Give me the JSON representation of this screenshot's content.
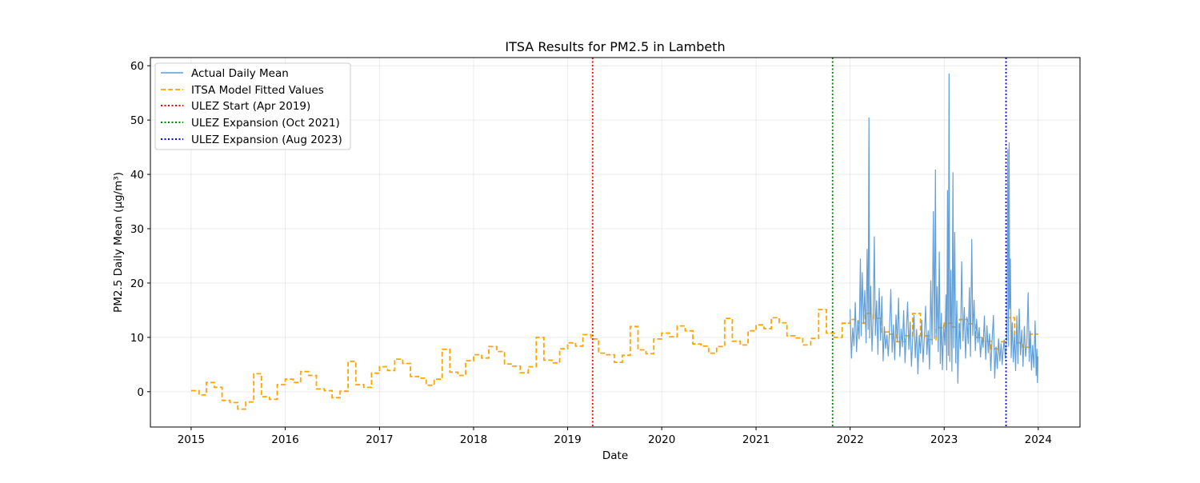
{
  "chart_data": {
    "type": "line",
    "title": "ITSA Results for PM2.5 in Lambeth",
    "xlabel": "Date",
    "ylabel": "PM2.5 Daily Mean (µg/m³)",
    "xlim": [
      "2014-07-27",
      "2024-06-11"
    ],
    "ylim": [
      -6.5,
      61.5
    ],
    "x_ticks": [
      "2015",
      "2016",
      "2017",
      "2018",
      "2019",
      "2020",
      "2021",
      "2022",
      "2023",
      "2024"
    ],
    "y_ticks": [
      0,
      10,
      20,
      30,
      40,
      50,
      60
    ],
    "grid": true,
    "legend_position": "upper-left",
    "series": [
      {
        "name": "Actual Daily Mean",
        "style": "solid",
        "color": "#5b9bd5",
        "points": [
          [
            "2022-01-01",
            15.2
          ],
          [
            "2022-01-06",
            6.1
          ],
          [
            "2022-01-11",
            11.8
          ],
          [
            "2022-01-16",
            8.4
          ],
          [
            "2022-01-21",
            16.5
          ],
          [
            "2022-01-26",
            7.3
          ],
          [
            "2022-01-31",
            13.1
          ],
          [
            "2022-02-05",
            9.6
          ],
          [
            "2022-02-10",
            24.5
          ],
          [
            "2022-02-13",
            10.2
          ],
          [
            "2022-02-17",
            22.0
          ],
          [
            "2022-02-22",
            12.5
          ],
          [
            "2022-02-27",
            18.7
          ],
          [
            "2022-03-04",
            8.9
          ],
          [
            "2022-03-08",
            26.3
          ],
          [
            "2022-03-12",
            11.4
          ],
          [
            "2022-03-15",
            50.5
          ],
          [
            "2022-03-18",
            9.8
          ],
          [
            "2022-03-22",
            19.5
          ],
          [
            "2022-03-27",
            7.4
          ],
          [
            "2022-04-01",
            14.6
          ],
          [
            "2022-04-05",
            28.6
          ],
          [
            "2022-04-09",
            10.3
          ],
          [
            "2022-04-14",
            16.8
          ],
          [
            "2022-04-19",
            6.8
          ],
          [
            "2022-04-24",
            19.1
          ],
          [
            "2022-04-29",
            9.4
          ],
          [
            "2022-05-04",
            17.6
          ],
          [
            "2022-05-09",
            5.6
          ],
          [
            "2022-05-14",
            12.0
          ],
          [
            "2022-05-19",
            7.9
          ],
          [
            "2022-05-24",
            10.5
          ],
          [
            "2022-05-29",
            6.5
          ],
          [
            "2022-06-03",
            11.2
          ],
          [
            "2022-06-08",
            18.9
          ],
          [
            "2022-06-13",
            7.2
          ],
          [
            "2022-06-18",
            12.4
          ],
          [
            "2022-06-23",
            5.8
          ],
          [
            "2022-06-28",
            14.2
          ],
          [
            "2022-07-03",
            9.1
          ],
          [
            "2022-07-08",
            17.3
          ],
          [
            "2022-07-13",
            6.4
          ],
          [
            "2022-07-18",
            11.6
          ],
          [
            "2022-07-23",
            8.2
          ],
          [
            "2022-07-28",
            15.0
          ],
          [
            "2022-08-02",
            5.3
          ],
          [
            "2022-08-07",
            10.8
          ],
          [
            "2022-08-12",
            16.6
          ],
          [
            "2022-08-17",
            7.7
          ],
          [
            "2022-08-22",
            12.9
          ],
          [
            "2022-08-27",
            4.6
          ],
          [
            "2022-09-01",
            9.8
          ],
          [
            "2022-09-06",
            14.1
          ],
          [
            "2022-09-11",
            6.2
          ],
          [
            "2022-09-16",
            11.5
          ],
          [
            "2022-09-21",
            3.2
          ],
          [
            "2022-09-26",
            10.4
          ],
          [
            "2022-10-01",
            7.0
          ],
          [
            "2022-10-06",
            13.2
          ],
          [
            "2022-10-11",
            5.4
          ],
          [
            "2022-10-16",
            9.9
          ],
          [
            "2022-10-21",
            15.8
          ],
          [
            "2022-10-26",
            6.8
          ],
          [
            "2022-10-31",
            11.3
          ],
          [
            "2022-11-05",
            4.1
          ],
          [
            "2022-11-10",
            20.5
          ],
          [
            "2022-11-15",
            8.6
          ],
          [
            "2022-11-20",
            33.2
          ],
          [
            "2022-11-24",
            9.7
          ],
          [
            "2022-11-28",
            40.9
          ],
          [
            "2022-12-01",
            10.1
          ],
          [
            "2022-12-05",
            19.4
          ],
          [
            "2022-12-09",
            7.3
          ],
          [
            "2022-12-13",
            25.8
          ],
          [
            "2022-12-17",
            5.1
          ],
          [
            "2022-12-21",
            14.5
          ],
          [
            "2022-12-25",
            4.0
          ],
          [
            "2022-12-30",
            12.3
          ],
          [
            "2023-01-04",
            8.5
          ],
          [
            "2023-01-08",
            17.9
          ],
          [
            "2023-01-11",
            3.9
          ],
          [
            "2023-01-14",
            37.1
          ],
          [
            "2023-01-17",
            6.6
          ],
          [
            "2023-01-20",
            58.6
          ],
          [
            "2023-01-23",
            5.5
          ],
          [
            "2023-01-27",
            22.4
          ],
          [
            "2023-01-31",
            3.7
          ],
          [
            "2023-02-04",
            40.4
          ],
          [
            "2023-02-07",
            8.0
          ],
          [
            "2023-02-11",
            29.4
          ],
          [
            "2023-02-15",
            5.2
          ],
          [
            "2023-02-19",
            16.8
          ],
          [
            "2023-02-23",
            1.5
          ],
          [
            "2023-02-28",
            12.7
          ],
          [
            "2023-03-05",
            7.8
          ],
          [
            "2023-03-10",
            24.0
          ],
          [
            "2023-03-15",
            9.3
          ],
          [
            "2023-03-20",
            15.6
          ],
          [
            "2023-03-25",
            6.1
          ],
          [
            "2023-03-30",
            13.8
          ],
          [
            "2023-04-04",
            8.8
          ],
          [
            "2023-04-09",
            19.2
          ],
          [
            "2023-04-13",
            6.4
          ],
          [
            "2023-04-18",
            28.1
          ],
          [
            "2023-04-22",
            10.3
          ],
          [
            "2023-04-27",
            16.9
          ],
          [
            "2023-05-02",
            7.5
          ],
          [
            "2023-05-07",
            13.4
          ],
          [
            "2023-05-12",
            9.0
          ],
          [
            "2023-05-17",
            11.9
          ],
          [
            "2023-05-22",
            6.3
          ],
          [
            "2023-05-27",
            10.1
          ],
          [
            "2023-06-01",
            8.1
          ],
          [
            "2023-06-06",
            14.0
          ],
          [
            "2023-06-11",
            5.9
          ],
          [
            "2023-06-16",
            12.2
          ],
          [
            "2023-06-21",
            7.1
          ],
          [
            "2023-06-26",
            10.7
          ],
          [
            "2023-07-01",
            3.8
          ],
          [
            "2023-07-06",
            9.5
          ],
          [
            "2023-07-11",
            14.1
          ],
          [
            "2023-07-16",
            2.4
          ],
          [
            "2023-07-21",
            8.3
          ],
          [
            "2023-07-26",
            4.2
          ],
          [
            "2023-07-31",
            9.8
          ],
          [
            "2023-08-05",
            5.6
          ],
          [
            "2023-08-10",
            8.9
          ],
          [
            "2023-08-14",
            4.9
          ],
          [
            "2023-08-18",
            7.8
          ],
          [
            "2023-08-22",
            9.6
          ],
          [
            "2023-08-26",
            6.1
          ],
          [
            "2023-08-30",
            8.4
          ],
          [
            "2023-09-02",
            11.7
          ],
          [
            "2023-09-05",
            44.6
          ],
          [
            "2023-09-08",
            8.3
          ],
          [
            "2023-09-10",
            45.9
          ],
          [
            "2023-09-12",
            15.2
          ],
          [
            "2023-09-15",
            24.5
          ],
          [
            "2023-09-18",
            6.2
          ],
          [
            "2023-09-22",
            12.8
          ],
          [
            "2023-09-26",
            5.4
          ],
          [
            "2023-10-01",
            10.6
          ],
          [
            "2023-10-05",
            3.8
          ],
          [
            "2023-10-10",
            14.0
          ],
          [
            "2023-10-14",
            5.1
          ],
          [
            "2023-10-19",
            15.3
          ],
          [
            "2023-10-24",
            6.7
          ],
          [
            "2023-10-29",
            11.4
          ],
          [
            "2023-11-03",
            4.6
          ],
          [
            "2023-11-08",
            12.1
          ],
          [
            "2023-11-13",
            6.4
          ],
          [
            "2023-11-18",
            9.2
          ],
          [
            "2023-11-23",
            18.3
          ],
          [
            "2023-11-27",
            5.5
          ],
          [
            "2023-12-01",
            11.2
          ],
          [
            "2023-12-06",
            3.9
          ],
          [
            "2023-12-10",
            8.6
          ],
          [
            "2023-12-15",
            4.4
          ],
          [
            "2023-12-20",
            13.1
          ],
          [
            "2023-12-24",
            2.9
          ],
          [
            "2023-12-27",
            7.9
          ],
          [
            "2023-12-29",
            1.6
          ],
          [
            "2023-12-31",
            6.5
          ]
        ]
      },
      {
        "name": "ITSA Model Fitted Values",
        "style": "dashed-step",
        "color": "#ffa500",
        "steps": [
          [
            "2015-01",
            0.2
          ],
          [
            "2015-02",
            -0.6
          ],
          [
            "2015-03",
            1.7
          ],
          [
            "2015-04",
            0.8
          ],
          [
            "2015-05",
            -1.6
          ],
          [
            "2015-06",
            -2.0
          ],
          [
            "2015-07",
            -3.2
          ],
          [
            "2015-08",
            -1.9
          ],
          [
            "2015-09",
            3.3
          ],
          [
            "2015-10",
            -0.9
          ],
          [
            "2015-11",
            -1.4
          ],
          [
            "2015-12",
            1.3
          ],
          [
            "2016-01",
            2.3
          ],
          [
            "2016-02",
            1.7
          ],
          [
            "2016-03",
            3.7
          ],
          [
            "2016-04",
            3.0
          ],
          [
            "2016-05",
            0.5
          ],
          [
            "2016-06",
            0.2
          ],
          [
            "2016-07",
            -1.1
          ],
          [
            "2016-08",
            0.1
          ],
          [
            "2016-09",
            5.6
          ],
          [
            "2016-10",
            1.3
          ],
          [
            "2016-11",
            0.8
          ],
          [
            "2016-12",
            3.4
          ],
          [
            "2017-01",
            4.6
          ],
          [
            "2017-02",
            3.9
          ],
          [
            "2017-03",
            6.0
          ],
          [
            "2017-04",
            5.2
          ],
          [
            "2017-05",
            2.8
          ],
          [
            "2017-06",
            2.5
          ],
          [
            "2017-07",
            1.2
          ],
          [
            "2017-08",
            2.3
          ],
          [
            "2017-09",
            7.8
          ],
          [
            "2017-10",
            3.6
          ],
          [
            "2017-11",
            3.0
          ],
          [
            "2017-12",
            5.7
          ],
          [
            "2018-01",
            6.8
          ],
          [
            "2018-02",
            6.2
          ],
          [
            "2018-03",
            8.3
          ],
          [
            "2018-04",
            7.4
          ],
          [
            "2018-05",
            5.1
          ],
          [
            "2018-06",
            4.7
          ],
          [
            "2018-07",
            3.5
          ],
          [
            "2018-08",
            4.6
          ],
          [
            "2018-09",
            10.0
          ],
          [
            "2018-10",
            5.8
          ],
          [
            "2018-11",
            5.3
          ],
          [
            "2018-12",
            7.9
          ],
          [
            "2019-01",
            9.0
          ],
          [
            "2019-02",
            8.4
          ],
          [
            "2019-03",
            10.5
          ],
          [
            "2019-04",
            9.7
          ],
          [
            "2019-05",
            7.1
          ],
          [
            "2019-06",
            6.8
          ],
          [
            "2019-07",
            5.4
          ],
          [
            "2019-08",
            6.7
          ],
          [
            "2019-09",
            12.0
          ],
          [
            "2019-10",
            7.7
          ],
          [
            "2019-11",
            7.0
          ],
          [
            "2019-12",
            9.7
          ],
          [
            "2020-01",
            10.8
          ],
          [
            "2020-02",
            10.1
          ],
          [
            "2020-03",
            12.1
          ],
          [
            "2020-04",
            11.2
          ],
          [
            "2020-05",
            8.8
          ],
          [
            "2020-06",
            8.4
          ],
          [
            "2020-07",
            7.1
          ],
          [
            "2020-08",
            8.3
          ],
          [
            "2020-09",
            13.5
          ],
          [
            "2020-10",
            9.3
          ],
          [
            "2020-11",
            8.6
          ],
          [
            "2020-12",
            11.2
          ],
          [
            "2021-01",
            12.3
          ],
          [
            "2021-02",
            11.6
          ],
          [
            "2021-03",
            13.6
          ],
          [
            "2021-04",
            12.7
          ],
          [
            "2021-05",
            10.3
          ],
          [
            "2021-06",
            9.9
          ],
          [
            "2021-07",
            8.6
          ],
          [
            "2021-08",
            9.8
          ],
          [
            "2021-09",
            15.1
          ],
          [
            "2021-10",
            10.8
          ],
          [
            "2021-11",
            10.0
          ],
          [
            "2021-12",
            12.6
          ],
          [
            "2022-01",
            13.3
          ],
          [
            "2022-02",
            12.6
          ],
          [
            "2022-03",
            14.4
          ],
          [
            "2022-04",
            13.5
          ],
          [
            "2022-05",
            11.0
          ],
          [
            "2022-06",
            10.6
          ],
          [
            "2022-07",
            9.2
          ],
          [
            "2022-08",
            10.3
          ],
          [
            "2022-09",
            14.4
          ],
          [
            "2022-10",
            10.3
          ],
          [
            "2022-11",
            9.6
          ],
          [
            "2022-12",
            11.8
          ],
          [
            "2023-01",
            12.6
          ],
          [
            "2023-02",
            11.9
          ],
          [
            "2023-03",
            13.3
          ],
          [
            "2023-04",
            12.5
          ],
          [
            "2023-05",
            10.0
          ],
          [
            "2023-06",
            9.3
          ],
          [
            "2023-07",
            7.9
          ],
          [
            "2023-08",
            9.2
          ],
          [
            "2023-09",
            13.6
          ],
          [
            "2023-10",
            9.0
          ],
          [
            "2023-11",
            8.2
          ],
          [
            "2023-12",
            10.6
          ]
        ]
      }
    ],
    "vlines": [
      {
        "name": "ULEZ Start (Apr 2019)",
        "date": "2019-04-08",
        "color": "#ff0000",
        "style": "dotted"
      },
      {
        "name": "ULEZ Expansion (Oct 2021)",
        "date": "2021-10-25",
        "color": "#008000",
        "style": "dotted"
      },
      {
        "name": "ULEZ Expansion (Aug 2023)",
        "date": "2023-08-29",
        "color": "#0000ff",
        "style": "dotted"
      }
    ]
  }
}
